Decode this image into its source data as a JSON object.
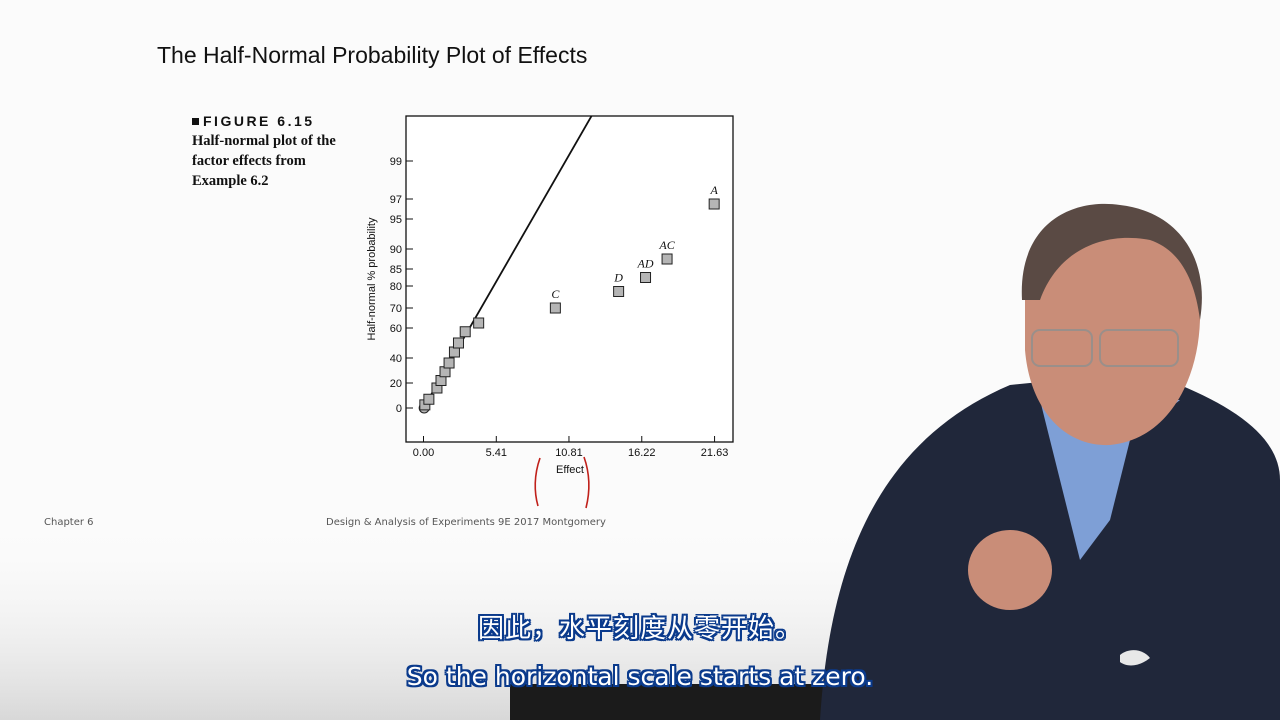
{
  "slide": {
    "title": "The Half-Normal Probability Plot of Effects",
    "figure_label": "FIGURE 6.15",
    "figure_desc": "Half-normal plot of the factor effects from Example 6.2",
    "footer_left": "Chapter 6",
    "footer_center": "Design & Analysis of Experiments 9E 2017 Montgomery"
  },
  "chart_data": {
    "type": "scatter",
    "xlabel": "Effect",
    "ylabel": "Half-normal % probability",
    "x_ticks": [
      0.0,
      5.41,
      10.81,
      16.22,
      21.63
    ],
    "x_tick_labels": [
      "0.00",
      "5.41",
      "10.81",
      "16.22",
      "21.63"
    ],
    "y_ticks": [
      0,
      20,
      40,
      60,
      70,
      80,
      85,
      90,
      95,
      97,
      99
    ],
    "y_tick_labels": [
      "0",
      "20",
      "40",
      "60",
      "70",
      "80",
      "85",
      "90",
      "95",
      "97",
      "99"
    ],
    "xlim": [
      -1.3,
      23.0
    ],
    "points": [
      {
        "x": 0.05,
        "y": 0,
        "label": "",
        "marker": "circle"
      },
      {
        "x": 0.1,
        "y": 2.5,
        "label": "",
        "marker": "square"
      },
      {
        "x": 0.4,
        "y": 7,
        "label": "",
        "marker": "square"
      },
      {
        "x": 1.0,
        "y": 16,
        "label": "",
        "marker": "square"
      },
      {
        "x": 1.3,
        "y": 22,
        "label": "",
        "marker": "square"
      },
      {
        "x": 1.6,
        "y": 29,
        "label": "",
        "marker": "square"
      },
      {
        "x": 1.9,
        "y": 36,
        "label": "",
        "marker": "square"
      },
      {
        "x": 2.3,
        "y": 44,
        "label": "",
        "marker": "square"
      },
      {
        "x": 2.6,
        "y": 50,
        "label": "",
        "marker": "square"
      },
      {
        "x": 3.1,
        "y": 57.5,
        "label": "",
        "marker": "square"
      },
      {
        "x": 4.1,
        "y": 62.5,
        "label": "",
        "marker": "square"
      },
      {
        "x": 9.8,
        "y": 70,
        "label": "C",
        "marker": "square"
      },
      {
        "x": 14.5,
        "y": 77.5,
        "label": "D",
        "marker": "square"
      },
      {
        "x": 16.5,
        "y": 82.5,
        "label": "AD",
        "marker": "square"
      },
      {
        "x": 18.1,
        "y": 87.5,
        "label": "AC",
        "marker": "square"
      },
      {
        "x": 21.6,
        "y": 96.5,
        "label": "A",
        "marker": "square"
      }
    ],
    "fit_line": {
      "x": [
        0,
        12.5
      ],
      "y": [
        0,
        99.8
      ]
    },
    "grid": false
  },
  "subtitles": {
    "zh": "因此，水平刻度从零开始。",
    "en": "So the horizontal scale starts at zero."
  },
  "annotation": {
    "color": "#c0201a",
    "description_marks": "red-bracket-marks"
  }
}
